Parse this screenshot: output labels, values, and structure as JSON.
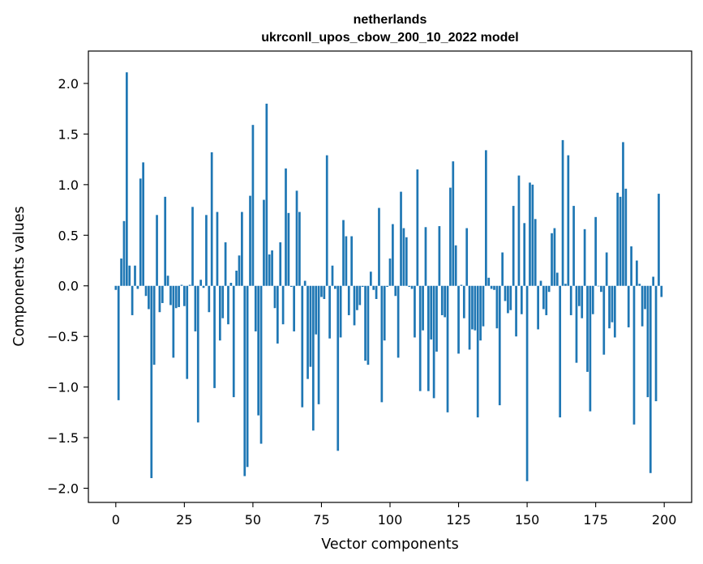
{
  "chart_data": {
    "type": "bar",
    "title": "netherlands",
    "subtitle": "ukrconll_upos_cbow_200_10_2022 model",
    "xlabel": "Vector components",
    "ylabel": "Components values",
    "xlim": [
      -10,
      210
    ],
    "ylim": [
      -2.14,
      2.32
    ],
    "xticks": [
      0,
      25,
      50,
      75,
      100,
      125,
      150,
      175,
      200
    ],
    "yticks": [
      -2.0,
      -1.5,
      -1.0,
      -0.5,
      0.0,
      0.5,
      1.0,
      1.5,
      2.0
    ],
    "ytick_labels": [
      "−2.0",
      "−1.5",
      "−1.0",
      "−0.5",
      "0.0",
      "0.5",
      "1.0",
      "1.5",
      "2.0"
    ],
    "grid": false,
    "bar_color": "#1f77b4",
    "x": [
      0,
      1,
      2,
      3,
      4,
      5,
      6,
      7,
      8,
      9,
      10,
      11,
      12,
      13,
      14,
      15,
      16,
      17,
      18,
      19,
      20,
      21,
      22,
      23,
      24,
      25,
      26,
      27,
      28,
      29,
      30,
      31,
      32,
      33,
      34,
      35,
      36,
      37,
      38,
      39,
      40,
      41,
      42,
      43,
      44,
      45,
      46,
      47,
      48,
      49,
      50,
      51,
      52,
      53,
      54,
      55,
      56,
      57,
      58,
      59,
      60,
      61,
      62,
      63,
      64,
      65,
      66,
      67,
      68,
      69,
      70,
      71,
      72,
      73,
      74,
      75,
      76,
      77,
      78,
      79,
      80,
      81,
      82,
      83,
      84,
      85,
      86,
      87,
      88,
      89,
      90,
      91,
      92,
      93,
      94,
      95,
      96,
      97,
      98,
      99,
      100,
      101,
      102,
      103,
      104,
      105,
      106,
      107,
      108,
      109,
      110,
      111,
      112,
      113,
      114,
      115,
      116,
      117,
      118,
      119,
      120,
      121,
      122,
      123,
      124,
      125,
      126,
      127,
      128,
      129,
      130,
      131,
      132,
      133,
      134,
      135,
      136,
      137,
      138,
      139,
      140,
      141,
      142,
      143,
      144,
      145,
      146,
      147,
      148,
      149,
      150,
      151,
      152,
      153,
      154,
      155,
      156,
      157,
      158,
      159,
      160,
      161,
      162,
      163,
      164,
      165,
      166,
      167,
      168,
      169,
      170,
      171,
      172,
      173,
      174,
      175,
      176,
      177,
      178,
      179,
      180,
      181,
      182,
      183,
      184,
      185,
      186,
      187,
      188,
      189,
      190,
      191,
      192,
      193,
      194,
      195,
      196,
      197,
      198,
      199
    ],
    "values": [
      -0.04,
      -1.13,
      0.27,
      0.64,
      2.11,
      0.2,
      -0.29,
      0.2,
      -0.03,
      1.06,
      1.22,
      -0.1,
      -0.23,
      -1.9,
      -0.78,
      0.7,
      -0.26,
      -0.17,
      0.88,
      0.1,
      -0.19,
      -0.71,
      -0.22,
      -0.21,
      0.01,
      -0.2,
      -0.92,
      0.01,
      0.78,
      -0.45,
      -1.35,
      0.06,
      -0.02,
      0.7,
      -0.26,
      1.32,
      -1.01,
      0.73,
      -0.54,
      -0.32,
      0.43,
      -0.38,
      0.03,
      -1.1,
      0.15,
      0.3,
      0.73,
      -1.88,
      -1.79,
      0.89,
      1.59,
      -0.45,
      -1.28,
      -1.56,
      0.85,
      1.8,
      0.31,
      0.35,
      -0.22,
      -0.57,
      0.43,
      -0.38,
      1.16,
      0.72,
      -0.01,
      -0.45,
      0.94,
      0.73,
      -1.2,
      0.05,
      -0.92,
      -0.8,
      -1.43,
      -0.48,
      -1.17,
      -0.11,
      -0.13,
      1.29,
      -0.52,
      0.2,
      -0.03,
      -1.63,
      -0.51,
      0.65,
      0.49,
      -0.29,
      0.49,
      -0.39,
      -0.24,
      -0.19,
      -0.01,
      -0.74,
      -0.78,
      0.14,
      -0.04,
      -0.13,
      0.77,
      -1.15,
      -0.54,
      -0.01,
      0.27,
      0.61,
      -0.1,
      -0.71,
      0.93,
      0.57,
      0.48,
      -0.01,
      -0.03,
      -0.51,
      1.15,
      -1.04,
      -0.44,
      0.58,
      -1.04,
      -0.53,
      -1.11,
      -0.65,
      0.59,
      -0.29,
      -0.31,
      -1.25,
      0.97,
      1.23,
      0.4,
      -0.67,
      0.01,
      -0.32,
      0.57,
      -0.63,
      -0.43,
      -0.44,
      -1.3,
      -0.54,
      -0.4,
      1.34,
      0.08,
      -0.03,
      -0.04,
      -0.42,
      -1.18,
      0.33,
      -0.15,
      -0.27,
      -0.24,
      0.79,
      -0.5,
      1.09,
      -0.28,
      0.62,
      -1.93,
      1.02,
      1.0,
      0.66,
      -0.43,
      0.05,
      -0.23,
      -0.29,
      -0.06,
      0.52,
      0.57,
      0.13,
      -1.3,
      1.44,
      0.02,
      1.29,
      -0.29,
      0.79,
      -0.76,
      -0.2,
      -0.32,
      0.56,
      -0.85,
      -1.24,
      -0.28,
      0.68,
      0.0,
      -0.06,
      -0.68,
      0.33,
      -0.42,
      -0.36,
      -0.51,
      0.92,
      0.88,
      1.42,
      0.96,
      -0.41,
      0.39,
      -1.37,
      0.25,
      0.02,
      -0.4,
      -0.23,
      -1.1,
      -1.85,
      0.09,
      -1.14,
      0.91,
      -0.11
    ]
  }
}
